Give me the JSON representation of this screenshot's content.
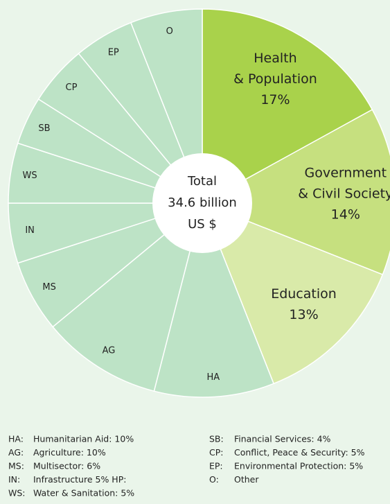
{
  "chart_data": {
    "type": "pie",
    "categories": [
      [
        "Health",
        "& Population"
      ],
      [
        "Government",
        "& Civil Society"
      ],
      [
        "Education"
      ],
      [
        "HA"
      ],
      [
        "AG"
      ],
      [
        "MS"
      ],
      [
        "IN"
      ],
      [
        "WS"
      ],
      [
        "SB"
      ],
      [
        "CP"
      ],
      [
        "EP"
      ],
      [
        "O"
      ]
    ],
    "values": [
      17,
      14,
      13,
      10,
      10,
      6,
      5,
      5,
      4,
      5,
      5,
      6
    ],
    "value_labels": [
      "17%",
      "14%",
      "13%",
      null,
      null,
      null,
      null,
      null,
      null,
      null,
      null,
      null
    ],
    "colors": [
      "#a9d24b",
      "#c6e07f",
      "#d9eaa9",
      "#bde3c6",
      "#bde3c6",
      "#bde3c6",
      "#bde3c6",
      "#bde3c6",
      "#bde3c6",
      "#bde3c6",
      "#bde3c6",
      "#bde3c6"
    ],
    "center_label": [
      "Total",
      "34.6 billion",
      "US $"
    ],
    "legend": [
      [
        [
          "HA:",
          "Humanitarian Aid: 10%"
        ],
        [
          "AG:",
          "Agriculture: 10%"
        ],
        [
          "MS:",
          "Multisector: 6%"
        ],
        [
          "IN:",
          "Infrastructure 5% HP:"
        ],
        [
          "WS:",
          "Water & Sanitation: 5%"
        ]
      ],
      [
        [
          "SB:",
          "Financial Services: 4%"
        ],
        [
          "CP:",
          "Conflict, Peace & Security: 5%"
        ],
        [
          "EP:",
          "Environmental Protection: 5%"
        ],
        [
          "O:",
          "Other"
        ]
      ]
    ]
  }
}
